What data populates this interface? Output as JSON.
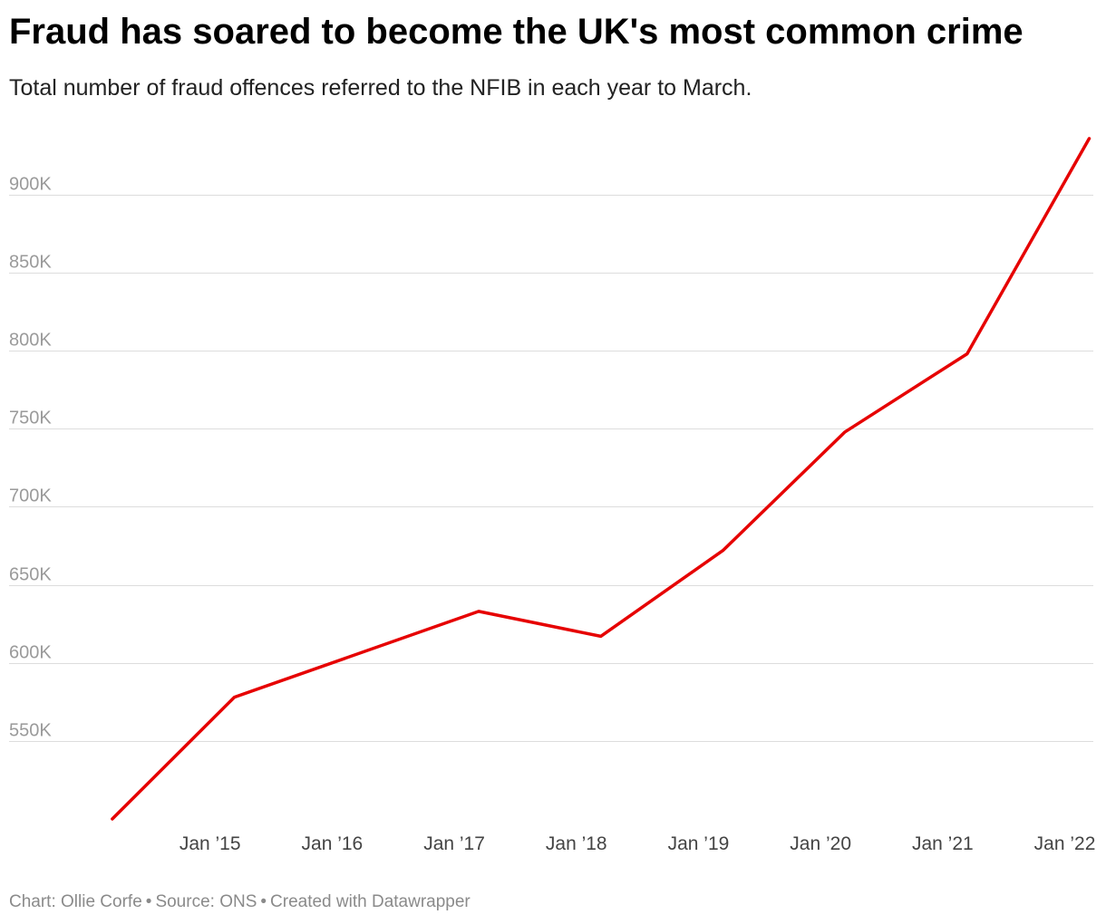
{
  "title": "Fraud has soared to become the UK's most common crime",
  "subtitle": "Total number of fraud offences referred to the NFIB in each year to March.",
  "footer": {
    "chart_credit": "Chart: Ollie Corfe",
    "source": "Source: ONS",
    "created_with": "Created with Datawrapper",
    "separator": "•"
  },
  "colors": {
    "line": "#e60000",
    "grid": "#dddddd",
    "axis_text": "#9a9a9a",
    "x_tick_text": "#444444"
  },
  "chart_data": {
    "type": "line",
    "title": "Fraud has soared to become the UK's most common crime",
    "xlabel": "",
    "ylabel": "",
    "ylim": [
      500000,
      940000
    ],
    "xlim": [
      2014.0,
      2022.1
    ],
    "grid": true,
    "y_ticks": [
      {
        "value": 550000,
        "label": "550K"
      },
      {
        "value": 600000,
        "label": "600K"
      },
      {
        "value": 650000,
        "label": "650K"
      },
      {
        "value": 700000,
        "label": "700K"
      },
      {
        "value": 750000,
        "label": "750K"
      },
      {
        "value": 800000,
        "label": "800K"
      },
      {
        "value": 850000,
        "label": "850K"
      },
      {
        "value": 900000,
        "label": "900K"
      }
    ],
    "x_ticks": [
      {
        "value": 2015,
        "label": "Jan ’15"
      },
      {
        "value": 2016,
        "label": "Jan ’16"
      },
      {
        "value": 2017,
        "label": "Jan ’17"
      },
      {
        "value": 2018,
        "label": "Jan ’18"
      },
      {
        "value": 2019,
        "label": "Jan ’19"
      },
      {
        "value": 2020,
        "label": "Jan ’20"
      },
      {
        "value": 2021,
        "label": "Jan ’21"
      },
      {
        "value": 2022,
        "label": "Jan ’22"
      }
    ],
    "series": [
      {
        "name": "Fraud offences referred to the NFIB",
        "x": [
          2014.2,
          2015.2,
          2017.2,
          2018.2,
          2019.2,
          2020.2,
          2021.2,
          2022.2
        ],
        "values": [
          500000,
          578000,
          633000,
          617000,
          672000,
          748000,
          798000,
          936000
        ]
      }
    ]
  }
}
